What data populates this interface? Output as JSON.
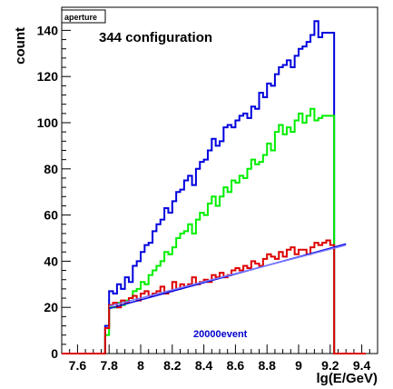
{
  "chart_data": {
    "type": "line",
    "tag": "aperture",
    "annotation": "344 configuration",
    "events_label": "20000event",
    "xlabel": "lg(E/GeV)",
    "ylabel": "count",
    "xlim": [
      7.5,
      9.5
    ],
    "ylim": [
      0,
      150
    ],
    "x_ticks": [
      "7.6",
      "7.8",
      "8",
      "8.2",
      "8.4",
      "8.6",
      "8.8",
      "9",
      "9.2",
      "9.4"
    ],
    "y_ticks": [
      "0",
      "20",
      "40",
      "60",
      "80",
      "100",
      "120",
      "140"
    ],
    "bin_edges": [
      7.5,
      7.525,
      7.55,
      7.575,
      7.6,
      7.625,
      7.65,
      7.675,
      7.7,
      7.725,
      7.75,
      7.775,
      7.8,
      7.825,
      7.85,
      7.875,
      7.9,
      7.925,
      7.95,
      7.975,
      8.0,
      8.025,
      8.05,
      8.075,
      8.1,
      8.125,
      8.15,
      8.175,
      8.2,
      8.225,
      8.25,
      8.275,
      8.3,
      8.325,
      8.35,
      8.375,
      8.4,
      8.425,
      8.45,
      8.475,
      8.5,
      8.525,
      8.55,
      8.575,
      8.6,
      8.625,
      8.65,
      8.675,
      8.7,
      8.725,
      8.75,
      8.775,
      8.8,
      8.825,
      8.85,
      8.875,
      8.9,
      8.925,
      8.95,
      8.975,
      9.0,
      9.025,
      9.05,
      9.075,
      9.1,
      9.125,
      9.15,
      9.175,
      9.2,
      9.225,
      9.25,
      9.275,
      9.3,
      9.325,
      9.35,
      9.375,
      9.4,
      9.425,
      9.45,
      9.475,
      9.5
    ],
    "series": [
      {
        "color": "#0000dd",
        "values": [
          0,
          0,
          0,
          0,
          0,
          0,
          0,
          0,
          0,
          0,
          0,
          12,
          27,
          26,
          30,
          28,
          33,
          31,
          38,
          40,
          44,
          47,
          48,
          53,
          56,
          58,
          63,
          61,
          66,
          70,
          71,
          75,
          77,
          73,
          80,
          83,
          84,
          88,
          93,
          90,
          92,
          98,
          99,
          98,
          101,
          103,
          104,
          102,
          107,
          106,
          113,
          111,
          117,
          116,
          121,
          124,
          125,
          127,
          124,
          129,
          132,
          133,
          135,
          138,
          144,
          137,
          139,
          139,
          139,
          0,
          0,
          0,
          0,
          0,
          0,
          0,
          0
        ]
      },
      {
        "color": "#00ee00",
        "values": [
          0,
          0,
          0,
          0,
          0,
          0,
          0,
          0,
          0,
          0,
          0,
          8,
          20,
          20,
          22,
          21,
          23,
          24,
          27,
          28,
          31,
          30,
          34,
          36,
          38,
          40,
          44,
          43,
          46,
          50,
          52,
          53,
          56,
          52,
          58,
          61,
          60,
          65,
          68,
          64,
          68,
          72,
          70,
          75,
          74,
          77,
          76,
          80,
          84,
          82,
          83,
          86,
          91,
          88,
          96,
          99,
          95,
          98,
          96,
          101,
          104,
          100,
          103,
          106,
          101,
          102,
          103,
          103,
          103,
          0,
          0,
          0,
          0,
          0,
          0,
          0,
          0
        ]
      },
      {
        "color": "#dd0000",
        "values": [
          0,
          0,
          0,
          0,
          0,
          0,
          0,
          0,
          0,
          0,
          0,
          11,
          21,
          22,
          20,
          23,
          22,
          24,
          25,
          23,
          26,
          27,
          25,
          26,
          27,
          29,
          26,
          27,
          31,
          28,
          30,
          29,
          30,
          33,
          30,
          31,
          32,
          31,
          34,
          33,
          35,
          33,
          34,
          36,
          37,
          36,
          38,
          37,
          40,
          39,
          38,
          41,
          43,
          42,
          41,
          44,
          42,
          45,
          46,
          43,
          45,
          45,
          43,
          46,
          48,
          47,
          48,
          49,
          47,
          0,
          0,
          0,
          0,
          0,
          0,
          0,
          0
        ]
      }
    ],
    "fit_lines": [
      {
        "color": "#0000dd",
        "x": [
          7.8,
          9.3
        ],
        "y": [
          19.5,
          47.5
        ]
      },
      {
        "color": "#7777ff",
        "x": [
          7.8,
          9.3
        ],
        "y": [
          20.5,
          47.0
        ]
      }
    ]
  }
}
